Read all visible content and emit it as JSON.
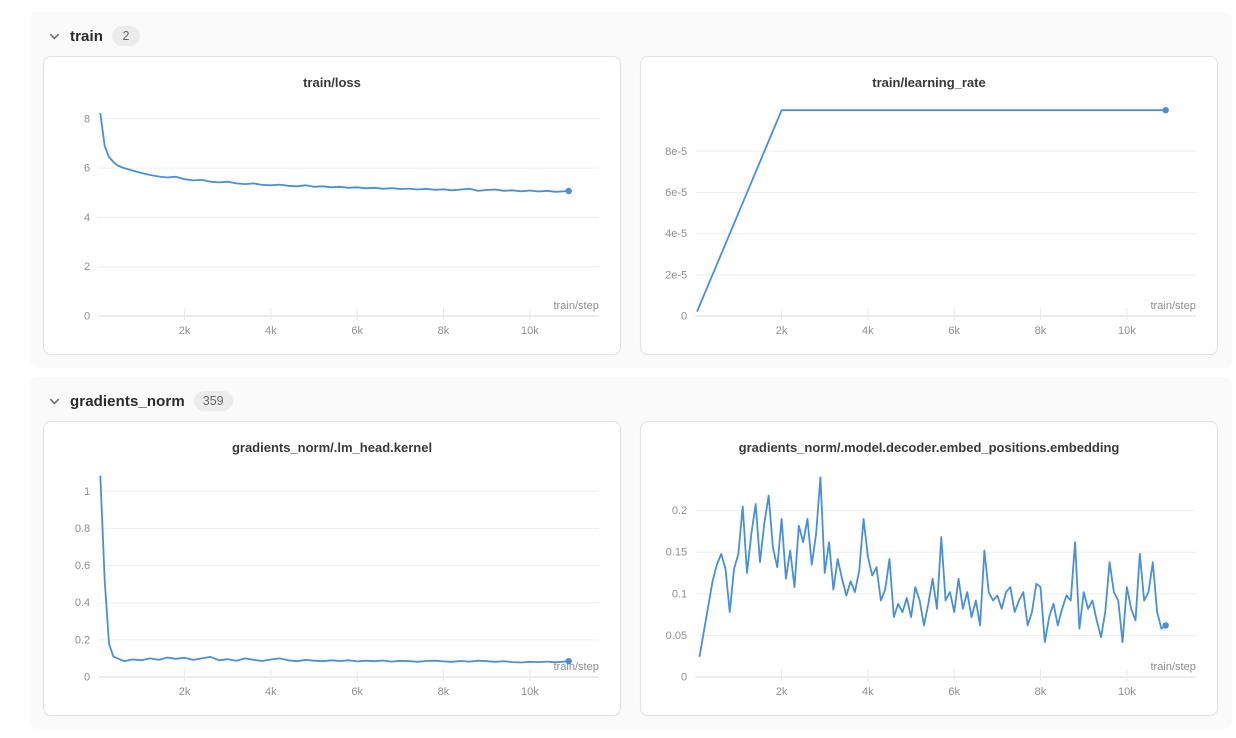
{
  "accent_color": "#4a90d9",
  "colors": {
    "section_bg": "#fafafa",
    "card_bg": "#ffffff",
    "card_border": "#e2e2e2",
    "gridline": "#ededed",
    "axis_line": "#d9d9d9",
    "tick_text": "#8f8f8f",
    "title_text": "#3a3a3a",
    "badge_bg": "#ececec"
  },
  "sections": [
    {
      "title": "train",
      "count": "2",
      "chart_indexes": [
        0,
        1
      ]
    },
    {
      "title": "gradients_norm",
      "count": "359",
      "chart_indexes": [
        2,
        3
      ]
    }
  ],
  "chart_data": [
    {
      "type": "line",
      "title": "train/loss",
      "xlabel": "train/step",
      "xlim": [
        0,
        11600
      ],
      "ylim": [
        0,
        8.6
      ],
      "xticks": [
        2000,
        4000,
        6000,
        8000,
        10000
      ],
      "xtick_labels": [
        "2k",
        "4k",
        "6k",
        "8k",
        "10k"
      ],
      "yticks": [
        0,
        2,
        4,
        6,
        8
      ],
      "ytick_labels": [
        "0",
        "2",
        "4",
        "6",
        "8"
      ],
      "grid": true,
      "end_marker": true,
      "x": [
        50,
        150,
        250,
        350,
        450,
        600,
        800,
        1000,
        1200,
        1400,
        1600,
        1800,
        2000,
        2200,
        2400,
        2600,
        2800,
        3000,
        3200,
        3400,
        3600,
        3800,
        4000,
        4200,
        4400,
        4600,
        4800,
        5000,
        5200,
        5400,
        5600,
        5800,
        6000,
        6200,
        6400,
        6600,
        6800,
        7000,
        7200,
        7400,
        7600,
        7800,
        8000,
        8200,
        8400,
        8600,
        8800,
        9000,
        9200,
        9400,
        9600,
        9800,
        10000,
        10200,
        10400,
        10600,
        10900
      ],
      "y": [
        8.2,
        6.9,
        6.45,
        6.25,
        6.1,
        6.0,
        5.9,
        5.8,
        5.72,
        5.66,
        5.62,
        5.65,
        5.55,
        5.5,
        5.52,
        5.45,
        5.42,
        5.45,
        5.38,
        5.35,
        5.38,
        5.32,
        5.3,
        5.33,
        5.28,
        5.26,
        5.3,
        5.24,
        5.26,
        5.22,
        5.24,
        5.2,
        5.22,
        5.18,
        5.2,
        5.16,
        5.19,
        5.15,
        5.17,
        5.13,
        5.16,
        5.12,
        5.14,
        5.1,
        5.13,
        5.16,
        5.08,
        5.11,
        5.13,
        5.08,
        5.1,
        5.06,
        5.09,
        5.05,
        5.08,
        5.04,
        5.07
      ]
    },
    {
      "type": "line",
      "title": "train/learning_rate",
      "xlabel": "train/step",
      "xlim": [
        0,
        11600
      ],
      "ylim": [
        0,
        0.000103
      ],
      "xticks": [
        2000,
        4000,
        6000,
        8000,
        10000
      ],
      "xtick_labels": [
        "2k",
        "4k",
        "6k",
        "8k",
        "10k"
      ],
      "yticks": [
        0,
        2e-05,
        4e-05,
        6e-05,
        8e-05
      ],
      "ytick_labels": [
        "0",
        "2e-5",
        "4e-5",
        "6e-5",
        "8e-5"
      ],
      "grid": true,
      "end_marker": true,
      "x": [
        50,
        2000,
        10900
      ],
      "y": [
        2.5e-06,
        0.0001,
        0.0001
      ]
    },
    {
      "type": "line",
      "title": "gradients_norm/.lm_head.kernel",
      "xlabel": "train/step",
      "xlim": [
        0,
        11600
      ],
      "ylim": [
        0,
        1.12
      ],
      "xticks": [
        2000,
        4000,
        6000,
        8000,
        10000
      ],
      "xtick_labels": [
        "2k",
        "4k",
        "6k",
        "8k",
        "10k"
      ],
      "yticks": [
        0,
        0.2,
        0.4,
        0.6,
        0.8,
        1
      ],
      "ytick_labels": [
        "0",
        "0.2",
        "0.4",
        "0.6",
        "0.8",
        "1"
      ],
      "grid": true,
      "end_marker": true,
      "x": [
        50,
        150,
        250,
        350,
        450,
        600,
        800,
        1000,
        1200,
        1400,
        1600,
        1800,
        2000,
        2200,
        2400,
        2600,
        2800,
        3000,
        3200,
        3400,
        3600,
        3800,
        4000,
        4200,
        4400,
        4600,
        4800,
        5000,
        5200,
        5400,
        5600,
        5800,
        6000,
        6200,
        6400,
        6600,
        6800,
        7000,
        7200,
        7400,
        7600,
        7800,
        8000,
        8200,
        8400,
        8600,
        8800,
        9000,
        9200,
        9400,
        9600,
        9800,
        10000,
        10200,
        10400,
        10600,
        10900
      ],
      "y": [
        1.08,
        0.52,
        0.18,
        0.11,
        0.1,
        0.085,
        0.095,
        0.09,
        0.1,
        0.092,
        0.105,
        0.098,
        0.104,
        0.092,
        0.1,
        0.108,
        0.09,
        0.096,
        0.088,
        0.1,
        0.092,
        0.086,
        0.094,
        0.1,
        0.09,
        0.085,
        0.092,
        0.088,
        0.085,
        0.09,
        0.086,
        0.09,
        0.084,
        0.088,
        0.085,
        0.089,
        0.083,
        0.087,
        0.085,
        0.082,
        0.086,
        0.088,
        0.084,
        0.082,
        0.086,
        0.083,
        0.088,
        0.085,
        0.082,
        0.085,
        0.08,
        0.078,
        0.082,
        0.08,
        0.083,
        0.079,
        0.085
      ]
    },
    {
      "type": "line",
      "title": "gradients_norm/.model.decoder.embed_positions.embedding",
      "xlabel": "train/step",
      "xlim": [
        0,
        11600
      ],
      "ylim": [
        0,
        0.25
      ],
      "xticks": [
        2000,
        4000,
        6000,
        8000,
        10000
      ],
      "xtick_labels": [
        "2k",
        "4k",
        "6k",
        "8k",
        "10k"
      ],
      "yticks": [
        0,
        0.05,
        0.1,
        0.15,
        0.2
      ],
      "ytick_labels": [
        "0",
        "0.05",
        "0.1",
        "0.15",
        "0.2"
      ],
      "grid": true,
      "end_marker": true,
      "x": [
        100,
        200,
        300,
        400,
        500,
        600,
        700,
        800,
        900,
        1000,
        1100,
        1200,
        1300,
        1400,
        1500,
        1600,
        1700,
        1800,
        1900,
        2000,
        2100,
        2200,
        2300,
        2400,
        2500,
        2600,
        2700,
        2800,
        2900,
        3000,
        3100,
        3200,
        3300,
        3400,
        3500,
        3600,
        3700,
        3800,
        3900,
        4000,
        4100,
        4200,
        4300,
        4400,
        4500,
        4600,
        4700,
        4800,
        4900,
        5000,
        5100,
        5200,
        5300,
        5400,
        5500,
        5600,
        5700,
        5800,
        5900,
        6000,
        6100,
        6200,
        6300,
        6400,
        6500,
        6600,
        6700,
        6800,
        6900,
        7000,
        7100,
        7200,
        7300,
        7400,
        7500,
        7600,
        7700,
        7800,
        7900,
        8000,
        8100,
        8200,
        8300,
        8400,
        8500,
        8600,
        8700,
        8800,
        8900,
        9000,
        9100,
        9200,
        9300,
        9400,
        9500,
        9600,
        9700,
        9800,
        9900,
        10000,
        10100,
        10200,
        10300,
        10400,
        10500,
        10600,
        10700,
        10800,
        10900
      ],
      "y": [
        0.025,
        0.055,
        0.085,
        0.115,
        0.135,
        0.148,
        0.13,
        0.078,
        0.13,
        0.148,
        0.205,
        0.125,
        0.172,
        0.208,
        0.138,
        0.185,
        0.218,
        0.155,
        0.132,
        0.19,
        0.118,
        0.152,
        0.108,
        0.182,
        0.162,
        0.19,
        0.135,
        0.172,
        0.24,
        0.125,
        0.162,
        0.105,
        0.142,
        0.118,
        0.098,
        0.115,
        0.102,
        0.128,
        0.19,
        0.145,
        0.122,
        0.132,
        0.092,
        0.105,
        0.142,
        0.072,
        0.088,
        0.078,
        0.095,
        0.072,
        0.108,
        0.092,
        0.062,
        0.088,
        0.118,
        0.082,
        0.168,
        0.092,
        0.102,
        0.078,
        0.118,
        0.082,
        0.102,
        0.072,
        0.092,
        0.062,
        0.152,
        0.102,
        0.092,
        0.098,
        0.082,
        0.102,
        0.108,
        0.078,
        0.092,
        0.102,
        0.062,
        0.078,
        0.112,
        0.108,
        0.042,
        0.072,
        0.088,
        0.062,
        0.082,
        0.098,
        0.092,
        0.162,
        0.058,
        0.102,
        0.082,
        0.092,
        0.068,
        0.048,
        0.078,
        0.138,
        0.102,
        0.092,
        0.042,
        0.108,
        0.082,
        0.068,
        0.148,
        0.092,
        0.102,
        0.138,
        0.078,
        0.058,
        0.062
      ]
    }
  ]
}
